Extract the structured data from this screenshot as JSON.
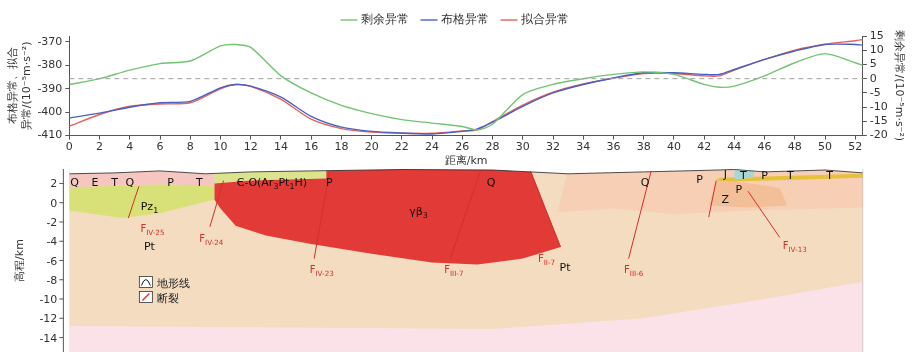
{
  "chart_data": {
    "type": "line",
    "x": [
      0,
      2,
      4,
      6,
      8,
      10,
      11,
      12,
      14,
      16,
      18,
      20,
      22,
      24,
      26,
      27,
      28,
      30,
      32,
      34,
      36,
      38,
      40,
      42,
      43,
      44,
      46,
      48,
      50,
      52,
      52.5
    ],
    "xlim": [
      0,
      52.5
    ],
    "xticks": [
      0,
      2,
      4,
      6,
      8,
      10,
      12,
      14,
      16,
      18,
      20,
      22,
      24,
      26,
      28,
      30,
      32,
      34,
      36,
      38,
      40,
      42,
      44,
      46,
      48,
      50,
      52
    ],
    "x_label": "距离/km",
    "y_label": [
      "布格异常、拟合",
      "异常/(10⁻⁵m·s⁻²)"
    ],
    "y2_label": "剩余异常/(10⁻⁵m·s⁻²)",
    "ylim": [
      -410,
      -367.5
    ],
    "yticks": [
      -410,
      -400,
      -390,
      -380,
      -370
    ],
    "y2lim": [
      -20,
      15
    ],
    "y2ticks": [
      -20,
      -15,
      -10,
      -5,
      0,
      5,
      10,
      15
    ],
    "grid": false,
    "legend": "top",
    "series": [
      {
        "name": "剩余异常",
        "color": "#72c472",
        "axis": "y2",
        "values": [
          -2.1,
          0,
          3,
          5.3,
          6.2,
          11.5,
          12,
          11,
          1,
          -5,
          -9.4,
          -12.3,
          -14.4,
          -15.6,
          -16.8,
          -18,
          -16,
          -5.6,
          -2,
          0,
          1.5,
          2.4,
          1.5,
          -2,
          -3,
          -2.6,
          1,
          5.6,
          8.8,
          5.6,
          4.7
        ]
      },
      {
        "name": "布格异常",
        "color": "#4a5fc4",
        "axis": "y",
        "values": [
          -402.5,
          -400.4,
          -397.9,
          -396,
          -395.4,
          -389.6,
          -388.2,
          -388.9,
          -393.6,
          -401.8,
          -406.4,
          -408.2,
          -408.9,
          -409.3,
          -408.2,
          -407.1,
          -404.3,
          -397.5,
          -391.8,
          -388.2,
          -385.4,
          -383.2,
          -383.2,
          -383.9,
          -383.9,
          -381.8,
          -377.5,
          -373.9,
          -371.1,
          -371.1,
          -371.4
        ]
      },
      {
        "name": "拟合异常",
        "color": "#e2625c",
        "axis": "y",
        "values": [
          -406,
          -401,
          -397.5,
          -396.5,
          -396,
          -390,
          -388.2,
          -389,
          -394.5,
          -403,
          -407,
          -408.5,
          -409,
          -409,
          -408,
          -407.5,
          -404,
          -397,
          -391.5,
          -388,
          -385.5,
          -383.5,
          -383.5,
          -384.5,
          -384.5,
          -382,
          -377.5,
          -373.5,
          -371,
          -369.5,
          -369
        ]
      }
    ],
    "annotations": [
      {
        "axis": "y2",
        "value": 0,
        "line_style": "dashed"
      }
    ]
  },
  "section": {
    "y_label": "高程/km",
    "ylim": [
      -15.5,
      3.5
    ],
    "yticks": [
      2,
      0,
      -2,
      -4,
      -6,
      -8,
      -10,
      -12,
      -14
    ],
    "units": [
      {
        "parts": [
          {
            "t": "Q"
          }
        ],
        "at": [
          0.35,
          2.1
        ]
      },
      {
        "parts": [
          {
            "t": "E"
          }
        ],
        "at": [
          1.7,
          2.1
        ]
      },
      {
        "parts": [
          {
            "t": "T"
          }
        ],
        "at": [
          3.0,
          2.1
        ]
      },
      {
        "parts": [
          {
            "t": "Q"
          }
        ],
        "at": [
          4.0,
          2.1
        ]
      },
      {
        "parts": [
          {
            "t": "P"
          }
        ],
        "at": [
          6.7,
          2.2
        ]
      },
      {
        "parts": [
          {
            "t": "T"
          }
        ],
        "at": [
          8.6,
          2.2
        ]
      },
      {
        "parts": [
          {
            "t": "Pz"
          },
          {
            "t": "1",
            "sub": true
          }
        ],
        "at": [
          5.3,
          -0.3
        ]
      },
      {
        "parts": [
          {
            "t": "Є-O(Ar"
          },
          {
            "t": "3",
            "sub": true
          },
          {
            "t": "Pt"
          },
          {
            "t": "1",
            "sub": true
          },
          {
            "t": "H)"
          }
        ],
        "at": [
          13.4,
          2.1
        ]
      },
      {
        "parts": [
          {
            "t": "P"
          }
        ],
        "at": [
          17.2,
          2.2
        ]
      },
      {
        "parts": [
          {
            "t": "γβ"
          },
          {
            "t": "3",
            "sub": true
          }
        ],
        "at": [
          23.1,
          -0.9
        ]
      },
      {
        "parts": [
          {
            "t": "Q"
          }
        ],
        "at": [
          27.9,
          2.1
        ]
      },
      {
        "parts": [
          {
            "t": "Pt"
          }
        ],
        "at": [
          5.3,
          -4.5
        ]
      },
      {
        "parts": [
          {
            "t": "Pt"
          }
        ],
        "at": [
          32.8,
          -6.7
        ]
      },
      {
        "parts": [
          {
            "t": "Q"
          }
        ],
        "at": [
          38.1,
          2.1
        ]
      },
      {
        "parts": [
          {
            "t": "P"
          }
        ],
        "at": [
          41.7,
          2.5
        ]
      },
      {
        "parts": [
          {
            "t": "J"
          }
        ],
        "at": [
          43.4,
          3.0
        ]
      },
      {
        "parts": [
          {
            "t": "T"
          }
        ],
        "at": [
          44.6,
          2.9
        ]
      },
      {
        "parts": [
          {
            "t": "P"
          }
        ],
        "at": [
          44.3,
          1.4
        ]
      },
      {
        "parts": [
          {
            "t": "P"
          }
        ],
        "at": [
          46.0,
          2.9
        ]
      },
      {
        "parts": [
          {
            "t": "T"
          }
        ],
        "at": [
          47.7,
          2.9
        ]
      },
      {
        "parts": [
          {
            "t": "T"
          }
        ],
        "at": [
          50.3,
          2.9
        ]
      },
      {
        "parts": [
          {
            "t": "Z"
          }
        ],
        "at": [
          43.4,
          0.4
        ]
      }
    ],
    "faults": [
      {
        "parts": [
          {
            "t": "F"
          },
          {
            "t": "IV-25",
            "sub": true
          }
        ],
        "at": [
          4.7,
          -2.6
        ]
      },
      {
        "parts": [
          {
            "t": "F"
          },
          {
            "t": "IV-24",
            "sub": true
          }
        ],
        "at": [
          8.6,
          -3.7
        ]
      },
      {
        "parts": [
          {
            "t": "F"
          },
          {
            "t": "IV-23",
            "sub": true
          }
        ],
        "at": [
          15.9,
          -6.9
        ]
      },
      {
        "parts": [
          {
            "t": "F"
          },
          {
            "t": "III-7",
            "sub": true
          }
        ],
        "at": [
          24.8,
          -6.9
        ]
      },
      {
        "parts": [
          {
            "t": "F"
          },
          {
            "t": "II-7",
            "sub": true
          }
        ],
        "at": [
          31.0,
          -5.7
        ]
      },
      {
        "parts": [
          {
            "t": "F"
          },
          {
            "t": "III-6",
            "sub": true
          }
        ],
        "at": [
          36.7,
          -6.9
        ]
      },
      {
        "parts": [
          {
            "t": "F"
          },
          {
            "t": "IV-13",
            "sub": true
          }
        ],
        "at": [
          47.2,
          -4.4
        ]
      }
    ],
    "legend_items": [
      "地形线",
      "断裂"
    ]
  }
}
